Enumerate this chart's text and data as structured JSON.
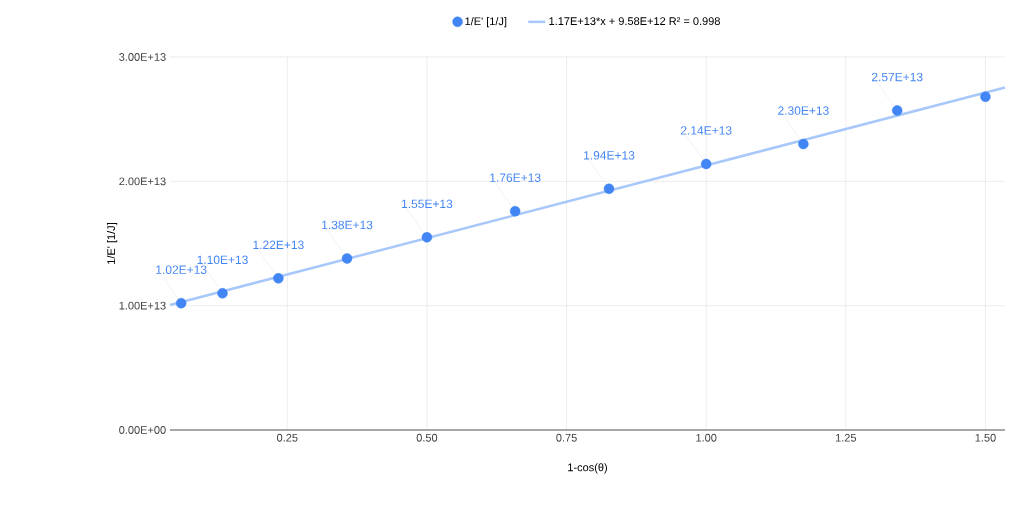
{
  "chart_data": {
    "type": "scatter",
    "xlabel": "1-cos(θ)",
    "ylabel": "1/E' [1/J]",
    "series": [
      {
        "name": "1/E' [1/J]",
        "type": "scatter",
        "color": "#4285f4",
        "marker": "circle",
        "x": [
          0.06,
          0.134,
          0.234,
          0.357,
          0.5,
          0.658,
          0.826,
          1.0,
          1.174,
          1.342,
          1.5
        ],
        "values": [
          10200000000000.0,
          11000000000000.0,
          12200000000000.0,
          13800000000000.0,
          15500000000000.0,
          17600000000000.0,
          19400000000000.0,
          21400000000000.0,
          23000000000000.0,
          25700000000000.0,
          26800000000000.0
        ],
        "value_labels": [
          "1.02E+13",
          "1.10E+13",
          "1.22E+13",
          "1.38E+13",
          "1.55E+13",
          "1.76E+13",
          "1.94E+13",
          "2.14E+13",
          "2.30E+13",
          "2.57E+13",
          null
        ]
      },
      {
        "name": "1.17E+13*x + 9.58E+12 R² = 0.998",
        "type": "line",
        "color": "#a8c7fa",
        "x": [
          0.04,
          1.535
        ],
        "values": [
          10050000000000.0,
          27540000000000.0
        ]
      }
    ],
    "xlim": [
      0.04,
      1.535
    ],
    "ylim": [
      0,
      30000000000000.0
    ],
    "xticks": [
      0.25,
      {
        "value": 0.5,
        "label": "0.50"
      },
      0.75,
      {
        "value": 1.0,
        "label": "1.00"
      },
      {
        "value": 1.25,
        "label": "1.25"
      },
      {
        "value": 1.5,
        "label": "1.50"
      }
    ],
    "yticks": [
      {
        "value": 0,
        "label": "0.00E+00"
      },
      {
        "value": 10000000000000.0,
        "label": "1.00E+13"
      },
      {
        "value": 20000000000000.0,
        "label": "2.00E+13"
      },
      {
        "value": 30000000000000.0,
        "label": "3.00E+13"
      }
    ],
    "grid": true,
    "legend": "top"
  }
}
